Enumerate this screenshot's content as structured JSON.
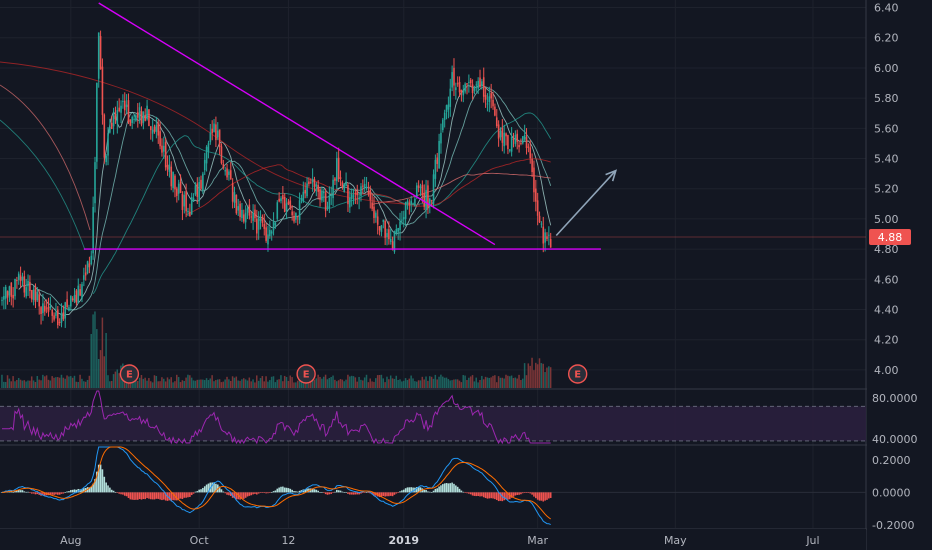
{
  "colors": {
    "background": "#131722",
    "grid": "#1e222d",
    "separator": "#363a45",
    "axis_text": "#b2b5be",
    "up": "#26a69a",
    "down": "#ef5350",
    "vol_up": "#1f6f69",
    "vol_down": "#8e3b3b",
    "trendline": "#d500f9",
    "arrow": "#8fa4b8",
    "rsi_line": "#9c27b0",
    "rsi_band": "#2a1f3d",
    "macd_line": "#2196f3",
    "signal_line": "#ff6d00",
    "hist_up": "#b2dfdb",
    "hist_down": "#ef5350",
    "price_tag": "#ef5350"
  },
  "chart_data": [
    {
      "type": "candlestick",
      "title": "",
      "x_axis": {
        "ticks": [
          "Aug",
          "Oct",
          "12",
          "2019",
          "Mar",
          "May",
          "Jul"
        ],
        "bold_ticks": [
          "2019"
        ]
      },
      "y_axis": {
        "range": [
          3.88,
          6.45
        ],
        "ticks": [
          "4.00",
          "4.20",
          "4.40",
          "4.60",
          "4.80",
          "5.00",
          "5.20",
          "5.40",
          "5.60",
          "5.80",
          "6.00",
          "6.20",
          "6.40"
        ]
      },
      "last_price": "4.88",
      "price_anchors": [
        {
          "t": 0,
          "p": 4.45
        },
        {
          "t": 10,
          "p": 4.6
        },
        {
          "t": 20,
          "p": 4.45
        },
        {
          "t": 30,
          "p": 4.35
        },
        {
          "t": 40,
          "p": 4.5
        },
        {
          "t": 48,
          "p": 4.75
        },
        {
          "t": 50,
          "p": 5.4
        },
        {
          "t": 52,
          "p": 6.3
        },
        {
          "t": 55,
          "p": 5.4
        },
        {
          "t": 62,
          "p": 5.75
        },
        {
          "t": 70,
          "p": 5.65
        },
        {
          "t": 78,
          "p": 5.7
        },
        {
          "t": 85,
          "p": 5.5
        },
        {
          "t": 92,
          "p": 5.25
        },
        {
          "t": 100,
          "p": 5.05
        },
        {
          "t": 108,
          "p": 5.3
        },
        {
          "t": 114,
          "p": 5.65
        },
        {
          "t": 118,
          "p": 5.4
        },
        {
          "t": 126,
          "p": 5.1
        },
        {
          "t": 134,
          "p": 5.0
        },
        {
          "t": 142,
          "p": 4.9
        },
        {
          "t": 150,
          "p": 5.1
        },
        {
          "t": 158,
          "p": 5.0
        },
        {
          "t": 166,
          "p": 5.25
        },
        {
          "t": 174,
          "p": 5.1
        },
        {
          "t": 180,
          "p": 5.35
        },
        {
          "t": 188,
          "p": 5.1
        },
        {
          "t": 196,
          "p": 5.2
        },
        {
          "t": 204,
          "p": 4.95
        },
        {
          "t": 210,
          "p": 4.85
        },
        {
          "t": 216,
          "p": 5.05
        },
        {
          "t": 224,
          "p": 5.2
        },
        {
          "t": 230,
          "p": 5.1
        },
        {
          "t": 236,
          "p": 5.55
        },
        {
          "t": 242,
          "p": 5.92
        },
        {
          "t": 250,
          "p": 5.85
        },
        {
          "t": 258,
          "p": 5.9
        },
        {
          "t": 263,
          "p": 5.75
        },
        {
          "t": 268,
          "p": 5.55
        },
        {
          "t": 274,
          "p": 5.5
        },
        {
          "t": 280,
          "p": 5.55
        },
        {
          "t": 284,
          "p": 5.45
        },
        {
          "t": 288,
          "p": 5.0
        },
        {
          "t": 292,
          "p": 4.85
        },
        {
          "t": 295,
          "p": 4.88
        }
      ],
      "trendlines": [
        {
          "name": "descending-resistance",
          "from": {
            "t": 52,
            "p": 6.43
          },
          "to": {
            "t": 265,
            "p": 4.83
          }
        },
        {
          "name": "horizontal-support",
          "from": {
            "t": 44,
            "p": 4.8
          },
          "to": {
            "t": 322,
            "p": 4.8
          }
        }
      ],
      "arrow": {
        "from": {
          "t": 298,
          "p": 4.89
        },
        "to": {
          "t": 330,
          "p": 5.32
        }
      },
      "earnings_markers_t": [
        47,
        142,
        288
      ]
    },
    {
      "type": "line",
      "name": "rsi",
      "y_axis": {
        "range": [
          35,
          88
        ],
        "ticks": [
          "80.0000",
          "40.0000"
        ]
      },
      "band": [
        38,
        72
      ]
    },
    {
      "type": "bar",
      "name": "macd",
      "y_axis": {
        "range": [
          -0.22,
          0.28
        ],
        "ticks": [
          "0.2000",
          "0.0000",
          "-0.2000"
        ]
      }
    }
  ]
}
